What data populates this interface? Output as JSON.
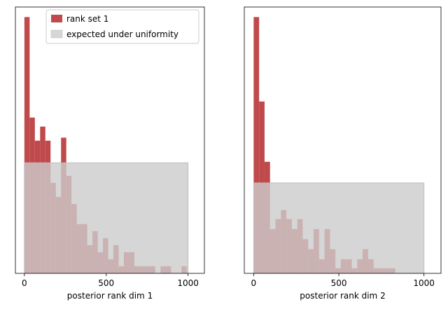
{
  "colors": {
    "bar": "#c0494b",
    "uniform_band": "#cccccc",
    "axes": "#000000"
  },
  "legend": {
    "items": [
      {
        "label": "rank set 1",
        "color": "#c0494b"
      },
      {
        "label": "expected under uniformity",
        "color": "#d6d6d6"
      }
    ],
    "location": "upper-right of left panel"
  },
  "chart_data": [
    {
      "type": "bar",
      "xlabel": "posterior rank dim 1",
      "ylabel": "",
      "xlim": [
        -55,
        1100
      ],
      "xticks": [
        0,
        500,
        1000
      ],
      "ylim": [
        0,
        26.5
      ],
      "grid": false,
      "bin_width": 32,
      "bins_start": [
        0,
        32,
        64,
        96,
        128,
        160,
        192,
        224,
        256,
        288,
        320,
        352,
        384,
        416,
        448,
        480,
        512,
        544,
        576,
        608,
        640,
        672,
        704,
        736,
        768,
        800,
        832,
        864,
        896,
        928,
        960
      ],
      "counts": [
        25.5,
        15.5,
        13.2,
        14.6,
        13.2,
        9.0,
        7.6,
        13.5,
        9.7,
        6.9,
        4.9,
        4.9,
        2.8,
        4.2,
        2.1,
        3.5,
        1.4,
        2.8,
        0.7,
        2.1,
        2.1,
        0.7,
        0.7,
        0.7,
        0.7,
        0.0,
        0.7,
        0.7,
        0.0,
        0.0,
        0.7
      ],
      "uniform_band": {
        "x": [
          0,
          1000
        ],
        "y": [
          0,
          11.0
        ]
      }
    },
    {
      "type": "bar",
      "xlabel": "posterior rank dim 2",
      "ylabel": "",
      "xlim": [
        -55,
        1100
      ],
      "xticks": [
        0,
        500,
        1000
      ],
      "ylim": [
        0,
        26.5
      ],
      "grid": false,
      "bin_width": 32,
      "bins_start": [
        0,
        32,
        64,
        96,
        128,
        160,
        192,
        224,
        256,
        288,
        320,
        352,
        384,
        416,
        448,
        480,
        512,
        544,
        576,
        608,
        640,
        672,
        704,
        736,
        768,
        800
      ],
      "counts": [
        25.5,
        17.1,
        11.1,
        4.4,
        5.4,
        6.3,
        5.4,
        4.4,
        5.4,
        3.4,
        2.4,
        4.4,
        1.4,
        4.4,
        2.4,
        0.5,
        1.4,
        1.4,
        0.5,
        1.4,
        2.4,
        1.4,
        0.5,
        0.5,
        0.5,
        0.5
      ],
      "uniform_band": {
        "x": [
          0,
          1000
        ],
        "y": [
          0,
          9.0
        ]
      }
    }
  ]
}
